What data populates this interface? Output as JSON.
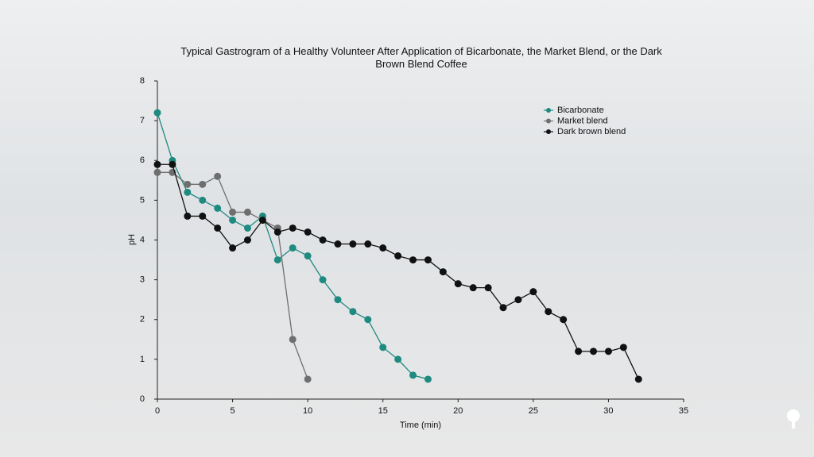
{
  "chart_data": {
    "type": "line",
    "title": "Typical Gastrogram of a Healthy Volunteer After Application of Bicarbonate, the Market Blend, or the Dark Brown Blend Coffee",
    "x_label": "Time (min)",
    "y_label": "pH",
    "xlim": [
      0,
      35
    ],
    "xticks": [
      0,
      5,
      10,
      15,
      20,
      25,
      30,
      35
    ],
    "ylim": [
      0,
      8
    ],
    "yticks": [
      0,
      1,
      2,
      3,
      4,
      5,
      6,
      7,
      8
    ],
    "grid": false,
    "legend": "upper right",
    "series": [
      {
        "name": "Bicarbonate",
        "color": "#1f8a80",
        "x": [
          0,
          1,
          2,
          3,
          4,
          5,
          6,
          7,
          8,
          9,
          10,
          11,
          12,
          13,
          14,
          15,
          16,
          17,
          18
        ],
        "values": [
          7.2,
          6.0,
          5.2,
          5.0,
          4.8,
          4.5,
          4.3,
          4.6,
          3.5,
          3.8,
          3.6,
          3.0,
          2.5,
          2.2,
          2.0,
          1.3,
          1.0,
          0.6,
          0.5
        ]
      },
      {
        "name": "Market blend",
        "color": "#6e6e6e",
        "x": [
          0,
          1,
          2,
          3,
          4,
          5,
          6,
          7,
          8,
          9,
          10
        ],
        "values": [
          5.7,
          5.7,
          5.4,
          5.4,
          5.6,
          4.7,
          4.7,
          4.5,
          4.3,
          1.5,
          0.5
        ]
      },
      {
        "name": "Dark brown blend",
        "color": "#111111",
        "x": [
          0,
          1,
          2,
          3,
          4,
          5,
          6,
          7,
          8,
          9,
          10,
          11,
          12,
          13,
          14,
          15,
          16,
          17,
          18,
          19,
          20,
          21,
          22,
          23,
          24,
          25,
          26,
          27,
          28,
          29,
          30,
          31,
          32
        ],
        "values": [
          5.9,
          5.9,
          4.6,
          4.6,
          4.3,
          3.8,
          4.0,
          4.5,
          4.2,
          4.3,
          4.2,
          4.0,
          3.9,
          3.9,
          3.9,
          3.8,
          3.6,
          3.5,
          3.5,
          3.2,
          2.9,
          2.8,
          2.8,
          2.3,
          2.5,
          2.7,
          2.2,
          2.0,
          1.2,
          1.2,
          1.2,
          1.3,
          0.5
        ]
      }
    ]
  }
}
